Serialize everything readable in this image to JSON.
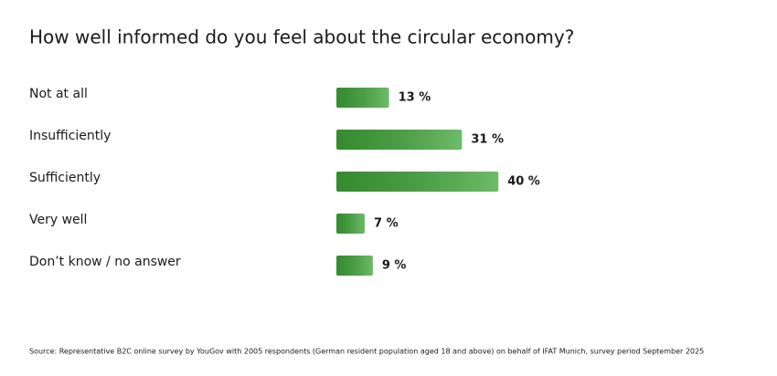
{
  "chart_data": {
    "type": "bar",
    "orientation": "horizontal",
    "title": "How well informed do you feel about the circular economy?",
    "categories": [
      "Not at all",
      "Insufficiently",
      "Sufficiently",
      "Very well",
      "Don’t know / no answer"
    ],
    "values": [
      13,
      31,
      40,
      7,
      9
    ],
    "value_labels": [
      "13 %",
      "31 %",
      "40 %",
      "7 %",
      "9 %"
    ],
    "color": "#3ea537",
    "source": "Source: Representative B2C online survey by YouGov with 2005 respondents (German resident population aged 18 and above) on behalf of IFAT Munich, survey period September 2025"
  }
}
